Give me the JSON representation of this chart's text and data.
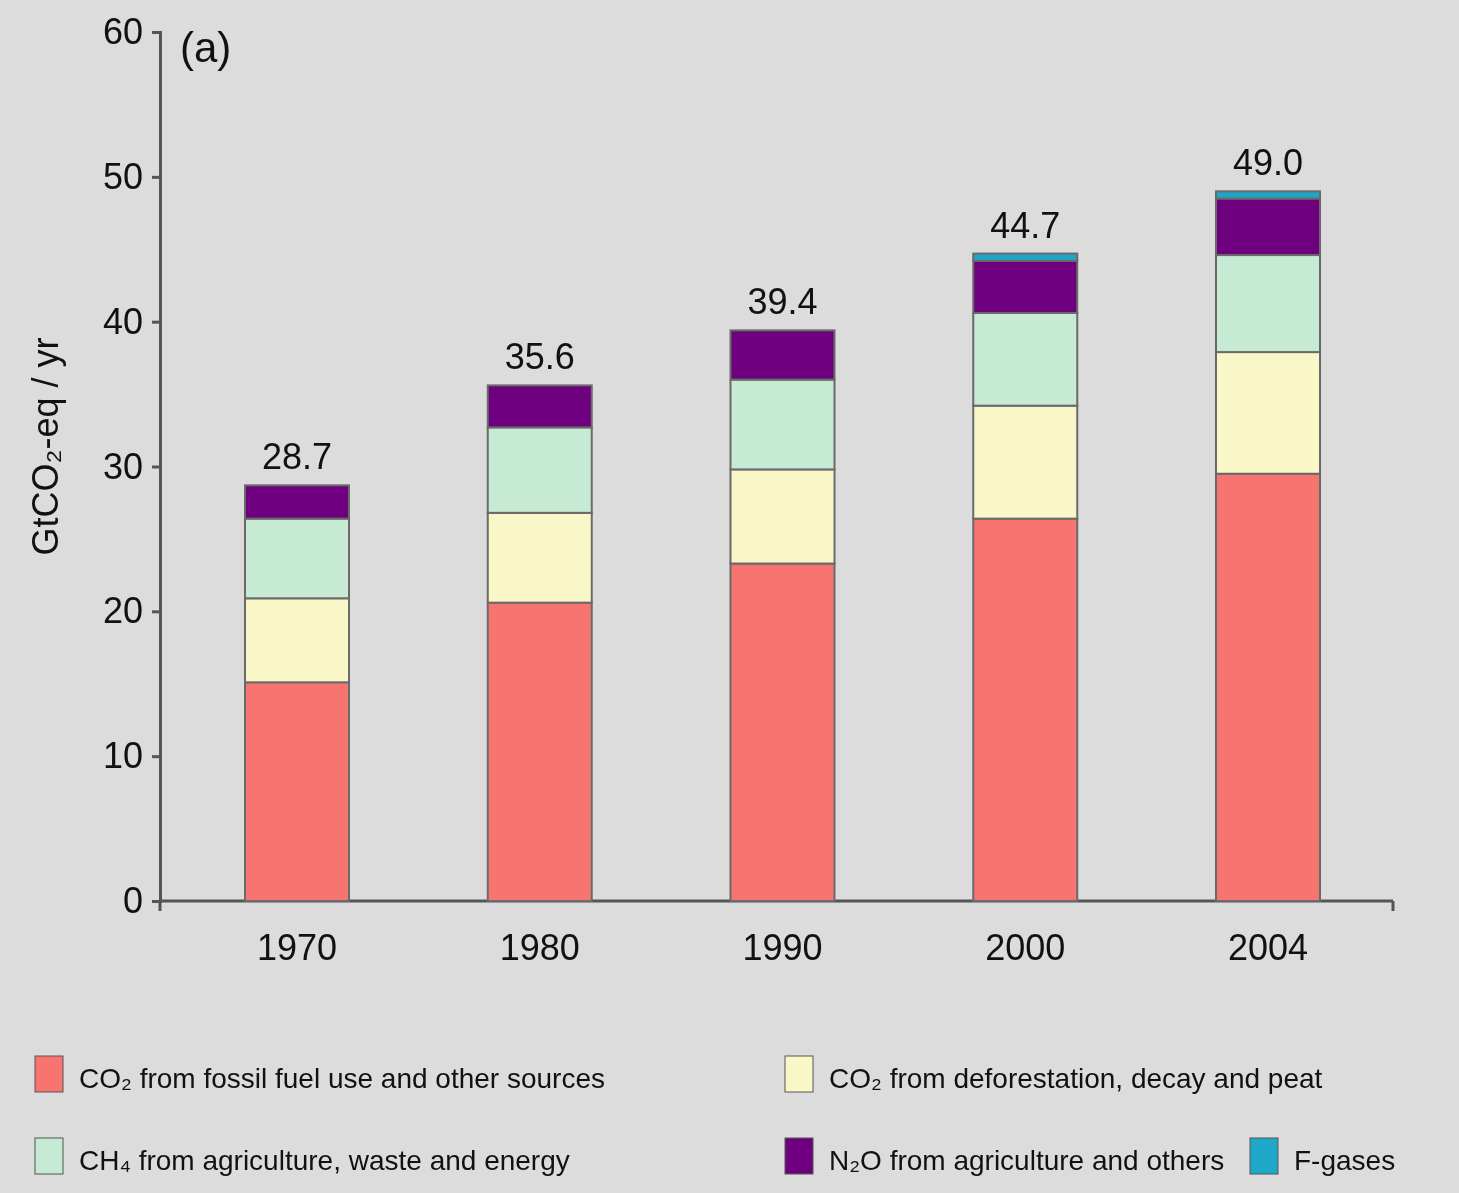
{
  "chart_data": {
    "type": "bar",
    "stacked": true,
    "title": "(a)",
    "ylabel": "GtCO₂-eq / yr",
    "categories": [
      "1970",
      "1980",
      "1990",
      "2000",
      "2004"
    ],
    "series": [
      {
        "name": "CO₂ from fossil fuel use and other sources",
        "color": "#f87470",
        "values": [
          15.1,
          20.6,
          23.3,
          26.4,
          29.5
        ]
      },
      {
        "name": "CO₂ from deforestation, decay and peat",
        "color": "#f9f7c8",
        "values": [
          5.8,
          6.2,
          6.5,
          7.8,
          8.4
        ]
      },
      {
        "name": "CH₄ from agriculture, waste and energy",
        "color": "#c6ead4",
        "values": [
          5.5,
          5.9,
          6.2,
          6.4,
          6.7
        ]
      },
      {
        "name": "N₂O from agriculture and others",
        "color": "#6e0080",
        "values": [
          2.3,
          2.9,
          3.4,
          3.6,
          3.9
        ]
      },
      {
        "name": "F-gases",
        "color": "#1ea8c8",
        "values": [
          0,
          0,
          0,
          0.5,
          0.5
        ]
      }
    ],
    "totals": [
      "28.7",
      "35.6",
      "39.4",
      "44.7",
      "49.0"
    ],
    "ylim": [
      0,
      60
    ],
    "yticks": [
      0,
      10,
      20,
      30,
      40,
      50,
      60
    ],
    "grid": false,
    "legend": "bottom"
  }
}
